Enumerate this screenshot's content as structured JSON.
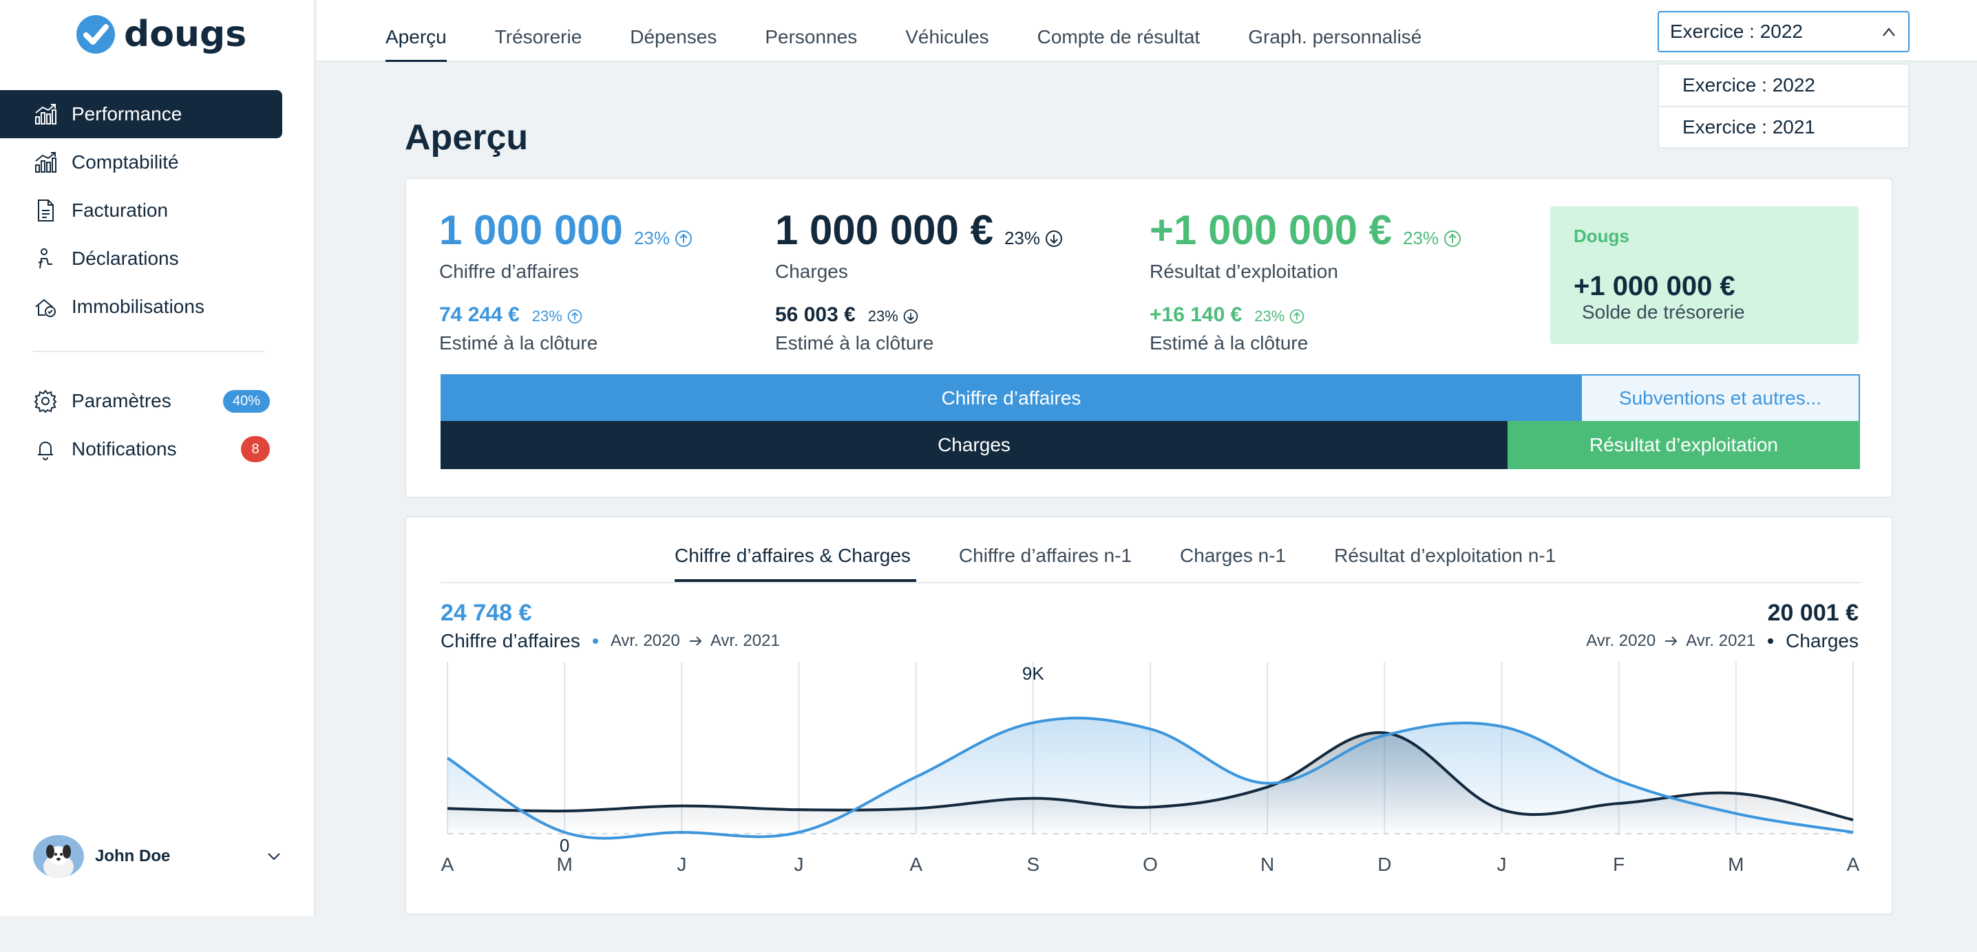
{
  "brand": {
    "name": "dougs"
  },
  "sidebar": {
    "items": [
      {
        "label": "Performance",
        "icon": "bar-chart-icon",
        "active": true
      },
      {
        "label": "Comptabilité",
        "icon": "bar-chart-icon"
      },
      {
        "label": "Facturation",
        "icon": "invoice-icon"
      },
      {
        "label": "Déclarations",
        "icon": "declaration-icon"
      },
      {
        "label": "Immobilisations",
        "icon": "asset-icon"
      }
    ],
    "secondary": [
      {
        "label": "Paramètres",
        "icon": "gear-icon",
        "badge": "40%"
      },
      {
        "label": "Notifications",
        "icon": "bell-icon",
        "count": "8"
      }
    ],
    "user": {
      "name": "John Doe"
    }
  },
  "tabs": [
    "Aperçu",
    "Trésorerie",
    "Dépenses",
    "Personnes",
    "Véhicules",
    "Compte de résultat",
    "Graph. personnalisé"
  ],
  "year_select": {
    "value": "Exercice : 2022",
    "options": [
      "Exercice : 2022",
      "Exercice : 2021"
    ]
  },
  "page_title": "Aperçu",
  "kpis": {
    "revenue": {
      "value": "1 000 000",
      "pct": "23%",
      "label": "Chiffre d’affaires",
      "estimate": "74 244 €",
      "estimate_pct": "23%",
      "estimate_label": "Estimé à la clôture"
    },
    "charges": {
      "value": "1 000 000 €",
      "pct": "23%",
      "label": "Charges",
      "estimate": "56 003 €",
      "estimate_pct": "23%",
      "estimate_label": "Estimé à la clôture"
    },
    "result": {
      "value": "+1 000 000 €",
      "pct": "23%",
      "label": "Résultat d’exploitation",
      "estimate": "+16 140 €",
      "estimate_pct": "23%",
      "estimate_label": "Estimé à la clôture"
    },
    "dougs": {
      "title": "Dougs",
      "value": "+1 000 000 €",
      "label": "Solde de trésorerie"
    }
  },
  "breakdown": {
    "revenue_label": "Chiffre d’affaires",
    "subsidies_label": "Subventions et autres...",
    "charges_label": "Charges",
    "result_label": "Résultat d’exploitation"
  },
  "chart_tabs": [
    "Chiffre d’affaires & Charges",
    "Chiffre d’affaires n-1",
    "Charges n-1",
    "Résultat d’exploitation n-1"
  ],
  "chart_left": {
    "value": "24 748 €",
    "label": "Chiffre d’affaires",
    "from": "Avr. 2020",
    "to": "Avr. 2021"
  },
  "chart_right": {
    "value": "20 001 €",
    "label": "Charges",
    "from": "Avr. 2020",
    "to": "Avr. 2021"
  },
  "colors": {
    "accent": "#3d96dc",
    "dark": "#13293d",
    "green": "#4cbd79",
    "alert": "#e0453a"
  },
  "chart_data": {
    "type": "area",
    "categories": [
      "A",
      "M",
      "J",
      "J",
      "A",
      "S",
      "O",
      "N",
      "D",
      "J",
      "F",
      "M",
      "A"
    ],
    "ylim": [
      0,
      12000
    ],
    "grid": true,
    "annotations": [
      {
        "text": "9K",
        "category_index": 5
      },
      {
        "text": "0",
        "category_index": 1
      }
    ],
    "series": [
      {
        "name": "Chiffre d’affaires",
        "color": "#3d96dc",
        "values": [
          6000,
          0,
          0,
          0,
          4500,
          8800,
          8300,
          4000,
          7800,
          8500,
          4200,
          1600,
          0
        ]
      },
      {
        "name": "Charges",
        "color": "#13293d",
        "values": [
          2000,
          1800,
          2200,
          1900,
          2000,
          2800,
          2100,
          3700,
          8000,
          1900,
          2400,
          3200,
          1100
        ]
      }
    ]
  }
}
